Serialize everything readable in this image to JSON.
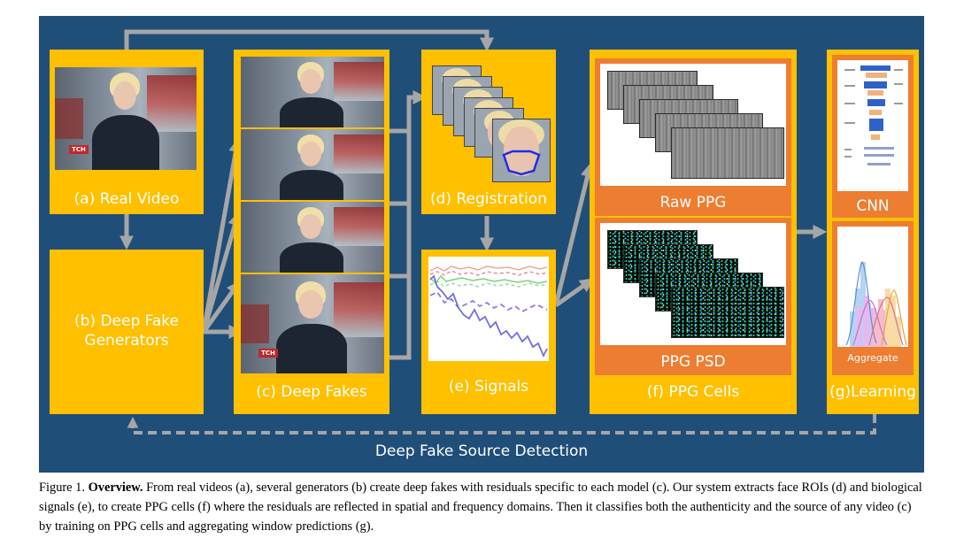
{
  "diagram": {
    "boxes": {
      "a": {
        "label": "(a) Real Video"
      },
      "b": {
        "label": "(b) Deep Fake\nGenerators"
      },
      "c": {
        "label": "(c) Deep Fakes"
      },
      "d": {
        "label": "(d) Registration"
      },
      "e": {
        "label": "(e) Signals"
      },
      "f": {
        "label": "(f) PPG Cells",
        "raw_label": "Raw PPG",
        "psd_label": "PPG PSD"
      },
      "g": {
        "label": "(g)Learning",
        "cnn_label": "CNN",
        "aggregate_label": "Aggregate"
      }
    },
    "footer_label": "Deep Fake Source Detection",
    "badge_text": "TCH",
    "colors": {
      "panel": "#1f4e79",
      "box": "#ffc000",
      "inner": "#ed7d31",
      "arrow": "#a6a6a6",
      "label": "#ffffff"
    }
  },
  "caption": {
    "prefix": "Figure 1. ",
    "bold": "Overview.",
    "text": " From real videos (a), several generators (b) create deep fakes with residuals specific to each model (c). Our system extracts face ROIs (d) and biological signals (e), to create PPG cells (f) where the residuals are reflected in spatial and frequency domains. Then it classifies both the authenticity and the source of any video (c) by training on PPG cells and aggregating window predictions (g)."
  }
}
